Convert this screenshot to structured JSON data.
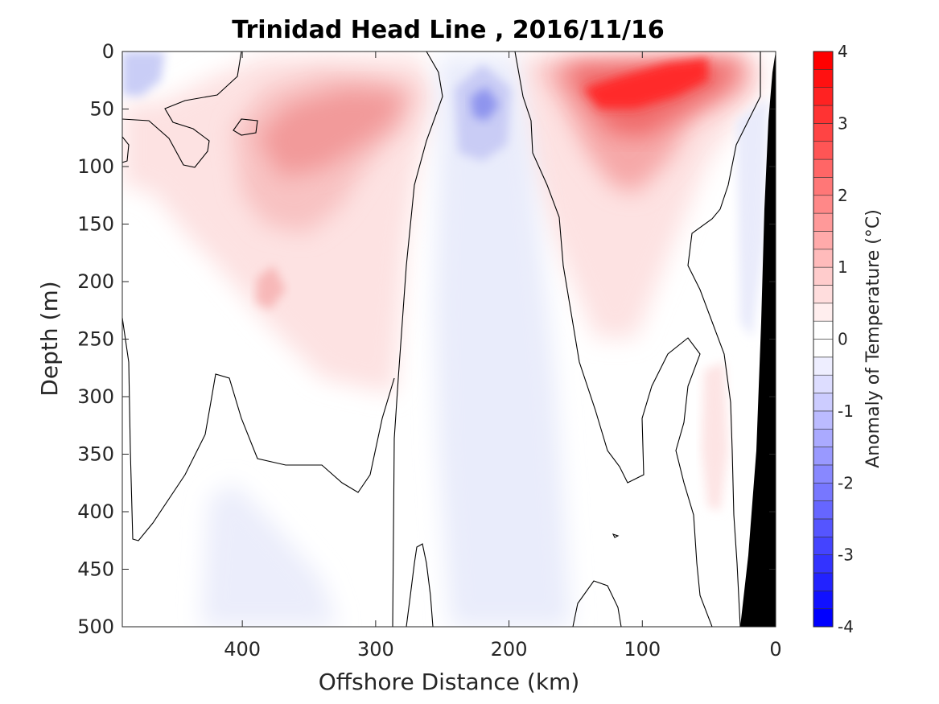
{
  "chart_data": {
    "type": "heatmap",
    "title": "Trinidad Head Line , 2016/11/16",
    "xlabel": "Offshore Distance (km)",
    "ylabel": "Depth (m)",
    "colorbar_label": "Anomaly of Temperature (°C)",
    "xlim": [
      490,
      0
    ],
    "ylim": [
      0,
      500
    ],
    "y_reversed": true,
    "xticks": [
      400,
      300,
      200,
      100,
      0
    ],
    "yticks": [
      0,
      50,
      100,
      150,
      200,
      250,
      300,
      350,
      400,
      450,
      500
    ],
    "clim": [
      -4,
      4
    ],
    "cticks": [
      -4,
      -3,
      -2,
      -1,
      0,
      1,
      2,
      3,
      4
    ],
    "contour_step": 0.25,
    "zero_contour_color": "#000000",
    "land_mask_color": "#000000",
    "colormap": {
      "negative": "#0000ff",
      "zero": "#ffffff",
      "positive": "#ff0000"
    },
    "features": [
      {
        "label": "warm core",
        "x": 95,
        "depth": 35,
        "anomaly": 4.0
      },
      {
        "label": "warm tongue",
        "x": 300,
        "depth": 70,
        "anomaly": 1.75
      },
      {
        "label": "cool band",
        "x": 220,
        "depth": 45,
        "anomaly": -1.5
      },
      {
        "label": "cool surface patch",
        "x": 480,
        "depth": 15,
        "anomaly": -0.6
      }
    ]
  }
}
